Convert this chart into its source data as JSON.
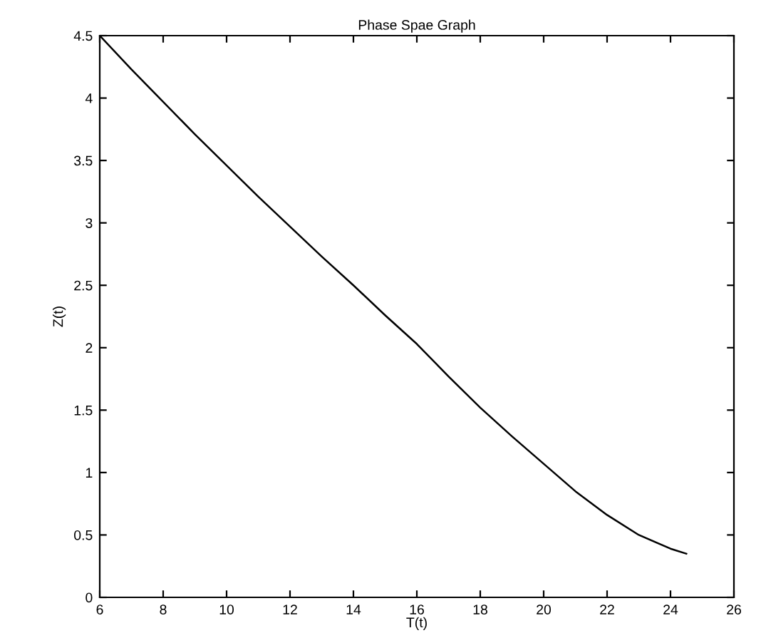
{
  "chart_data": {
    "type": "line",
    "title": "Phase Spae Graph",
    "xlabel": "T(t)",
    "ylabel": "Z(t)",
    "x": [
      6,
      7,
      8,
      9,
      10,
      11,
      12,
      13,
      14,
      15,
      16,
      17,
      18,
      19,
      20,
      21,
      22,
      23,
      24,
      24.5
    ],
    "series": [
      {
        "color": "#000000",
        "values": [
          4.5,
          4.23,
          3.97,
          3.71,
          3.46,
          3.21,
          2.97,
          2.73,
          2.5,
          2.26,
          2.03,
          1.77,
          1.52,
          1.29,
          1.07,
          0.85,
          0.66,
          0.5,
          0.39,
          0.35
        ]
      }
    ],
    "xlim": [
      6,
      26
    ],
    "ylim": [
      0,
      4.5
    ],
    "xticks": [
      6,
      8,
      10,
      12,
      14,
      16,
      18,
      20,
      22,
      24,
      26
    ],
    "yticks": [
      0,
      0.5,
      1,
      1.5,
      2,
      2.5,
      3,
      3.5,
      4,
      4.5
    ],
    "grid": false,
    "marker": "none",
    "line_style": "solid"
  }
}
